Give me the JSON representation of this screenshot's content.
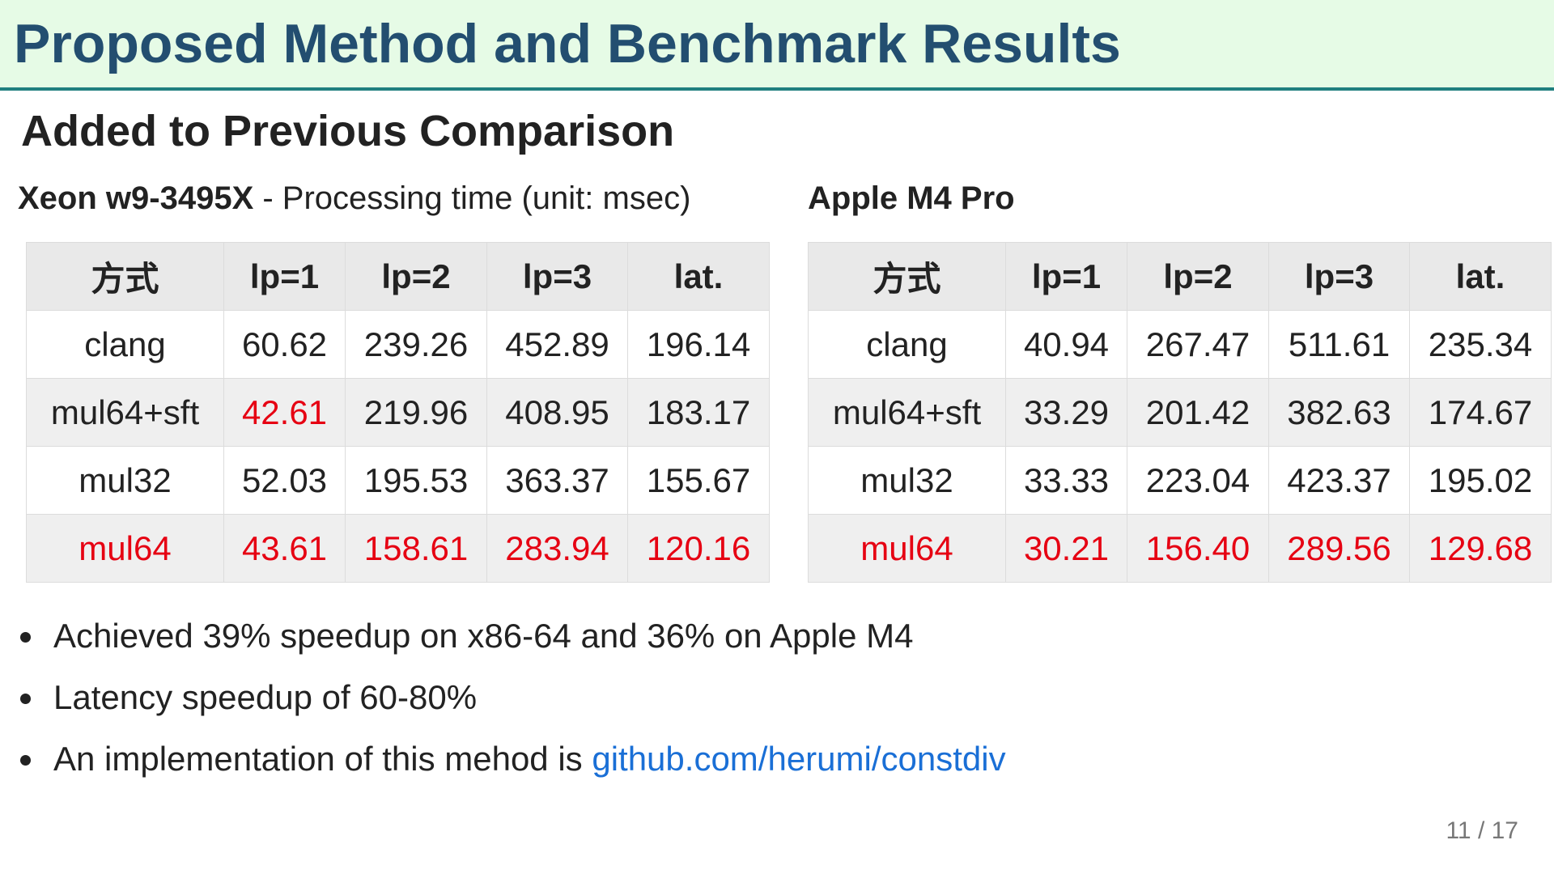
{
  "header": {
    "title": "Proposed Method and Benchmark Results"
  },
  "subtitle": "Added to Previous Comparison",
  "highlight_color": "#e60012",
  "tables": [
    {
      "caption_bold": "Xeon w9-3495X",
      "caption_rest": " - Processing time (unit: msec)",
      "columns": [
        "方式",
        "lp=1",
        "lp=2",
        "lp=3",
        "lat."
      ],
      "rows": [
        [
          "clang",
          "60.62",
          "239.26",
          "452.89",
          "196.14"
        ],
        [
          "mul64+sft",
          "42.61",
          "219.96",
          "408.95",
          "183.17"
        ],
        [
          "mul32",
          "52.03",
          "195.53",
          "363.37",
          "155.67"
        ],
        [
          "mul64",
          "43.61",
          "158.61",
          "283.94",
          "120.16"
        ]
      ],
      "highlighted": [
        [
          1,
          1
        ],
        [
          3,
          0
        ],
        [
          3,
          1
        ],
        [
          3,
          2
        ],
        [
          3,
          3
        ],
        [
          3,
          4
        ]
      ]
    },
    {
      "caption_bold": "Apple M4 Pro",
      "columns": [
        "方式",
        "lp=1",
        "lp=2",
        "lp=3",
        "lat."
      ],
      "rows": [
        [
          "clang",
          "40.94",
          "267.47",
          "511.61",
          "235.34"
        ],
        [
          "mul64+sft",
          "33.29",
          "201.42",
          "382.63",
          "174.67"
        ],
        [
          "mul32",
          "33.33",
          "223.04",
          "423.37",
          "195.02"
        ],
        [
          "mul64",
          "30.21",
          "156.40",
          "289.56",
          "129.68"
        ]
      ],
      "highlighted": [
        [
          3,
          0
        ],
        [
          3,
          1
        ],
        [
          3,
          2
        ],
        [
          3,
          3
        ],
        [
          3,
          4
        ]
      ]
    }
  ],
  "bullets": [
    {
      "text": "Achieved 39% speedup on x86-64 and 36% on Apple M4"
    },
    {
      "text": "Latency speedup of 60-80%"
    },
    {
      "text": "An implementation of this mehod is ",
      "link": "github.com/herumi/constdiv"
    }
  ],
  "page_number": "11 / 17"
}
